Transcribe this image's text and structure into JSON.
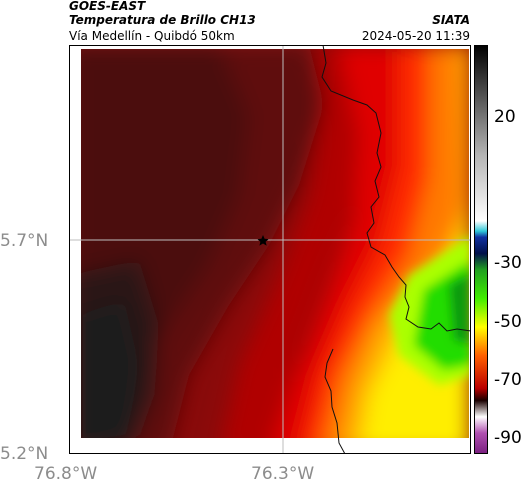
{
  "header": {
    "satellite": "GOES-EAST",
    "product": "Temperatura de Brillo CH13",
    "subtitle": "Vía Medellín - Quibdó 50km",
    "organization": "SIATA",
    "timestamp": "2024-05-20 11:39"
  },
  "map": {
    "lat_labels": [
      "5.7°N",
      "5.2°N"
    ],
    "lon_labels": [
      "76.8°W",
      "76.3°W"
    ],
    "marker_icon": "star-icon",
    "colors": {
      "very_cold": "#1c1c1c",
      "cold": "#5a0808",
      "mid": "#cc0000",
      "warm": "#ff6a00",
      "yellow": "#ffff00",
      "green": "#11cc00"
    }
  },
  "colorbar": {
    "ticks": [
      "20",
      "-30",
      "-50",
      "-70",
      "-90"
    ],
    "tick_values": [
      20,
      -30,
      -50,
      -70,
      -90
    ],
    "range": [
      -95,
      45
    ]
  }
}
